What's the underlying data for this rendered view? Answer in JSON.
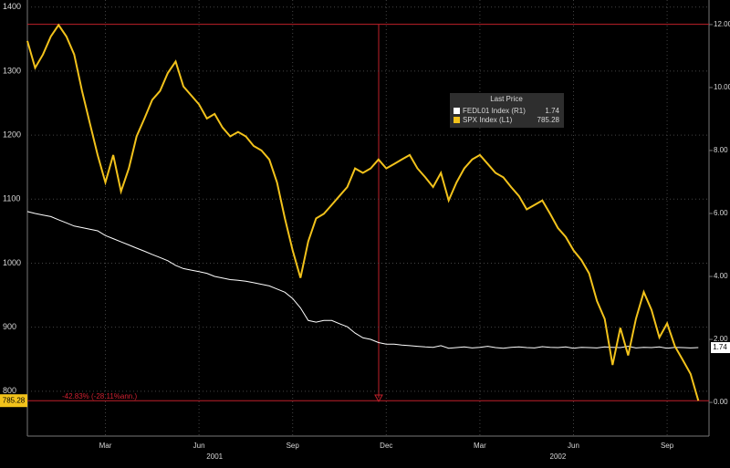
{
  "chart_data": {
    "type": "line",
    "categories": [
      null,
      null,
      null,
      null,
      null,
      null,
      null,
      null,
      null,
      null,
      "Mar",
      null,
      null,
      null,
      null,
      null,
      null,
      null,
      null,
      null,
      null,
      null,
      "Jun",
      null,
      null,
      null,
      null,
      null,
      null,
      null,
      null,
      null,
      null,
      null,
      "Sep",
      null,
      null,
      null,
      null,
      null,
      null,
      null,
      null,
      null,
      null,
      null,
      "Dec",
      null,
      null,
      null,
      null,
      null,
      null,
      null,
      null,
      null,
      null,
      null,
      "Mar",
      null,
      null,
      null,
      null,
      null,
      null,
      null,
      null,
      null,
      null,
      null,
      "Jun",
      null,
      null,
      null,
      null,
      null,
      null,
      null,
      null,
      null,
      null,
      null,
      "Sep",
      null,
      null,
      null,
      null
    ],
    "years": [
      null,
      null,
      null,
      null,
      null,
      null,
      null,
      null,
      null,
      null,
      null,
      null,
      null,
      null,
      null,
      null,
      null,
      null,
      null,
      null,
      null,
      null,
      null,
      null,
      "2001",
      null,
      null,
      null,
      null,
      null,
      null,
      null,
      null,
      null,
      null,
      null,
      null,
      null,
      null,
      null,
      null,
      null,
      null,
      null,
      null,
      null,
      null,
      null,
      null,
      null,
      null,
      null,
      null,
      null,
      null,
      null,
      null,
      null,
      null,
      null,
      null,
      null,
      null,
      null,
      null,
      null,
      null,
      null,
      "2002",
      null,
      null,
      null,
      null,
      null,
      null,
      null,
      null,
      null,
      null,
      null,
      null,
      null,
      null,
      null,
      null,
      null,
      null
    ],
    "legend_title": "Last Price",
    "series": [
      {
        "name": "FEDL01 Index (R1)",
        "color": "#ffffff",
        "axis": "y2",
        "values": [
          6.06,
          6.0,
          5.95,
          5.9,
          5.8,
          5.7,
          5.6,
          5.55,
          5.5,
          5.45,
          5.3,
          5.2,
          5.1,
          5.0,
          4.9,
          4.8,
          4.7,
          4.6,
          4.5,
          4.35,
          4.25,
          4.2,
          4.15,
          4.1,
          4.0,
          3.95,
          3.9,
          3.88,
          3.85,
          3.8,
          3.75,
          3.7,
          3.6,
          3.5,
          3.3,
          3.0,
          2.6,
          2.55,
          2.6,
          2.6,
          2.5,
          2.4,
          2.2,
          2.05,
          2.0,
          1.9,
          1.85,
          1.85,
          1.82,
          1.8,
          1.78,
          1.76,
          1.75,
          1.8,
          1.72,
          1.74,
          1.76,
          1.73,
          1.75,
          1.78,
          1.74,
          1.72,
          1.75,
          1.76,
          1.74,
          1.73,
          1.77,
          1.75,
          1.74,
          1.76,
          1.72,
          1.75,
          1.74,
          1.73,
          1.76,
          1.75,
          1.74,
          1.78,
          1.73,
          1.75,
          1.74,
          1.76,
          1.72,
          1.75,
          1.74,
          1.73,
          1.74
        ]
      },
      {
        "name": "SPX Index (L1)",
        "color": "#f2c21b",
        "axis": "y",
        "values": [
          1347,
          1305,
          1326,
          1354,
          1372,
          1354,
          1326,
          1269,
          1219,
          1169,
          1126,
          1169,
          1112,
          1148,
          1198,
          1226,
          1255,
          1269,
          1297,
          1315,
          1276,
          1262,
          1248,
          1226,
          1233,
          1212,
          1198,
          1205,
          1198,
          1183,
          1176,
          1162,
          1126,
          1070,
          1020,
          977,
          1034,
          1070,
          1077,
          1091,
          1105,
          1119,
          1148,
          1141,
          1148,
          1162,
          1148,
          1155,
          1162,
          1169,
          1148,
          1134,
          1119,
          1141,
          1098,
          1126,
          1148,
          1162,
          1169,
          1155,
          1141,
          1134,
          1119,
          1105,
          1084,
          1091,
          1098,
          1077,
          1055,
          1041,
          1020,
          1005,
          984,
          941,
          913,
          841,
          899,
          856,
          913,
          955,
          927,
          884,
          906,
          870,
          849,
          827,
          785.28
        ]
      }
    ],
    "ylim": [
      730,
      1411
    ],
    "yticks": [
      800,
      900,
      1000,
      1100,
      1200,
      1300,
      1400
    ],
    "y2lim": [
      -1.07,
      12.78
    ],
    "y2ticks": [
      {
        "value": 0,
        "label": "0.00"
      },
      {
        "value": 2,
        "label": "2.00"
      },
      {
        "value": 4,
        "label": "4.00"
      },
      {
        "value": 6,
        "label": "6.00"
      },
      {
        "value": 8,
        "label": "8.00"
      },
      {
        "value": 10,
        "label": "10.00"
      },
      {
        "value": 12,
        "label": "12.00"
      }
    ],
    "hlines": [
      1373,
      785.28
    ],
    "annotation": "-42.83% (-28.11%ann.)",
    "grid": true
  }
}
